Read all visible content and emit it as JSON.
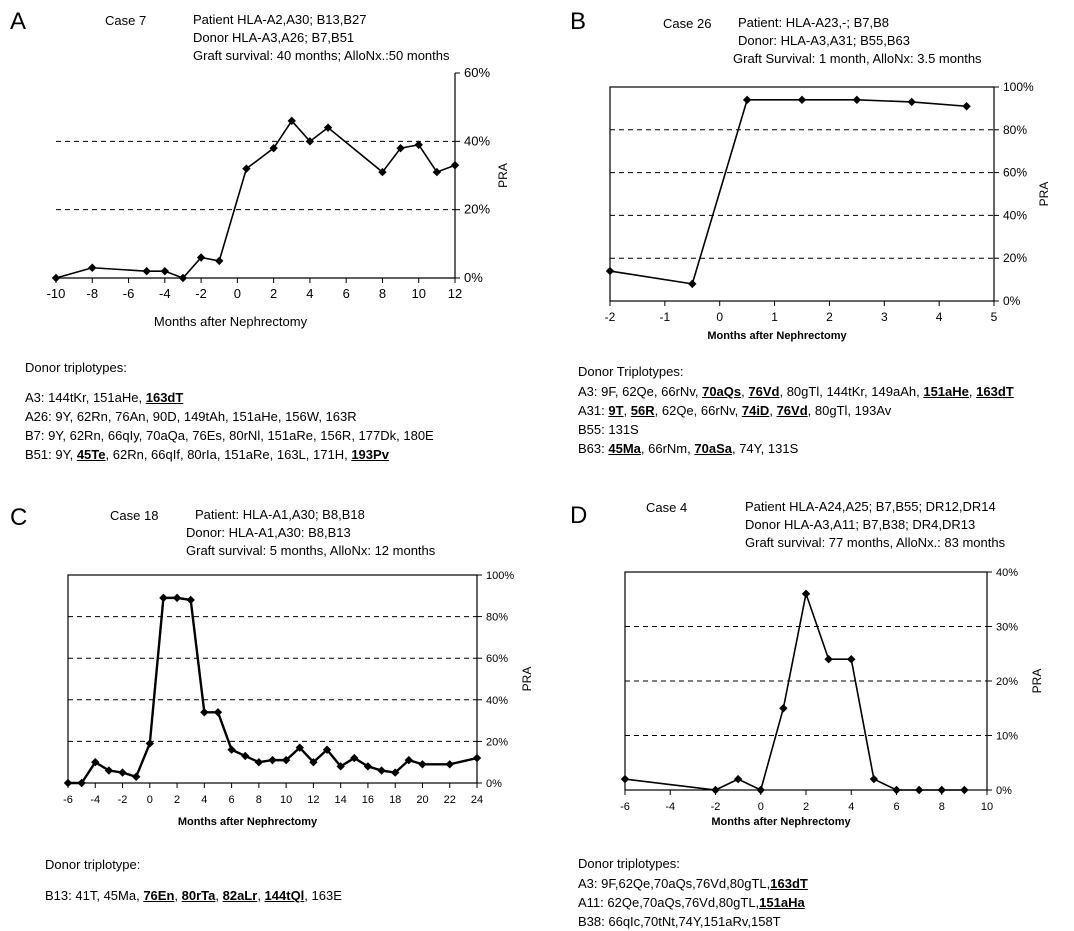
{
  "panels": [
    {
      "letter": "A",
      "case_label": "Case 7",
      "header": [
        "Patient HLA-A2,A30; B13,B27",
        "Donor HLA-A3,A26; B7,B51",
        "Graft survival: 40 months; AlloNx.:50 months"
      ],
      "triplotype_title": "Donor triplotypes:",
      "triplotype_rows": [
        {
          "label": "A3:",
          "tokens": [
            {
              "t": "144tKr",
              "u": false
            },
            {
              "t": "151aHe",
              "u": false
            },
            {
              "t": "163dT",
              "u": true
            }
          ]
        },
        {
          "label": "A26:",
          "tokens": [
            {
              "t": "9Y",
              "u": false
            },
            {
              "t": "62Rn",
              "u": false
            },
            {
              "t": "76An",
              "u": false
            },
            {
              "t": "90D",
              "u": false
            },
            {
              "t": "149tAh",
              "u": false
            },
            {
              "t": "151aHe",
              "u": false
            },
            {
              "t": "156W",
              "u": false
            },
            {
              "t": "163R",
              "u": false
            }
          ]
        },
        {
          "label": "B7:",
          "tokens": [
            {
              "t": "9Y",
              "u": false
            },
            {
              "t": "62Rn",
              "u": false
            },
            {
              "t": "66qIy",
              "u": false
            },
            {
              "t": "70aQa",
              "u": false
            },
            {
              "t": "76Es",
              "u": false
            },
            {
              "t": "80rNl",
              "u": false
            },
            {
              "t": "151aRe",
              "u": false
            },
            {
              "t": "156R",
              "u": false
            },
            {
              "t": "177Dk",
              "u": false
            },
            {
              "t": "180E",
              "u": false
            }
          ]
        },
        {
          "label": "B51:",
          "tokens": [
            {
              "t": "9Y",
              "u": false
            },
            {
              "t": "45Te",
              "u": true
            },
            {
              "t": "62Rn",
              "u": false
            },
            {
              "t": "66qIf",
              "u": false
            },
            {
              "t": "80rIa",
              "u": false
            },
            {
              "t": "151aRe",
              "u": false
            },
            {
              "t": "163L",
              "u": false
            },
            {
              "t": "171H",
              "u": false
            },
            {
              "t": "193Pv",
              "u": true
            }
          ]
        }
      ]
    },
    {
      "letter": "B",
      "case_label": "Case 26",
      "header": [
        "Patient: HLA-A23,-; B7,B8",
        "Donor: HLA-A3,A31; B55,B63",
        "Graft Survival: 1 month, AlloNx: 3.5 months"
      ],
      "triplotype_title": "Donor Triplotypes:",
      "triplotype_rows": [
        {
          "label": "A3:",
          "tokens": [
            {
              "t": "9F",
              "u": false
            },
            {
              "t": "62Qe",
              "u": false
            },
            {
              "t": "66rNv",
              "u": false
            },
            {
              "t": "70aQs",
              "u": true
            },
            {
              "t": "76Vd",
              "u": true
            },
            {
              "t": "80gTl",
              "u": false
            },
            {
              "t": "144tKr",
              "u": false
            },
            {
              "t": "149aAh",
              "u": false
            },
            {
              "t": "151aHe",
              "u": true
            },
            {
              "t": "163dT",
              "u": true
            }
          ]
        },
        {
          "label": "A31:",
          "tokens": [
            {
              "t": "9T",
              "u": true
            },
            {
              "t": "56R",
              "u": true
            },
            {
              "t": "62Qe",
              "u": false
            },
            {
              "t": "66rNv",
              "u": false
            },
            {
              "t": "74iD",
              "u": true
            },
            {
              "t": "76Vd",
              "u": true
            },
            {
              "t": "80gTl",
              "u": false
            },
            {
              "t": "193Av",
              "u": false
            }
          ]
        },
        {
          "label": "B55:",
          "tokens": [
            {
              "t": "131S",
              "u": false
            }
          ]
        },
        {
          "label": "B63:",
          "tokens": [
            {
              "t": "45Ma",
              "u": true
            },
            {
              "t": "66rNm",
              "u": false
            },
            {
              "t": "70aSa",
              "u": true
            },
            {
              "t": "74Y",
              "u": false
            },
            {
              "t": "131S",
              "u": false
            }
          ]
        }
      ]
    },
    {
      "letter": "C",
      "case_label": "Case 18",
      "header": [
        "Patient:  HLA-A1,A30; B8,B18",
        "Donor:  HLA-A1,A30: B8,B13",
        "Graft survival: 5 months, AlloNx: 12 months"
      ],
      "triplotype_title": "Donor triplotype:",
      "triplotype_rows": [
        {
          "label": "B13:",
          "tokens": [
            {
              "t": "41T",
              "u": false
            },
            {
              "t": "45Ma",
              "u": false
            },
            {
              "t": "76En",
              "u": true
            },
            {
              "t": "80rTa",
              "u": true
            },
            {
              "t": "82aLr",
              "u": true
            },
            {
              "t": "144tQl",
              "u": true
            },
            {
              "t": "163E",
              "u": false
            }
          ]
        }
      ]
    },
    {
      "letter": "D",
      "case_label": "Case 4",
      "header": [
        "Patient HLA-A24,A25; B7,B55; DR12,DR14",
        "Donor HLA-A3,A11; B7,B38; DR4,DR13",
        "Graft survival: 77 months, AlloNx.: 83 months"
      ],
      "triplotype_title": "Donor triplotypes:",
      "triplotype_rows": [
        {
          "label": "A3:",
          "tokens": [
            {
              "t": "9F,62Qe,70aQs,76Vd,80gTL,",
              "u": false
            },
            {
              "t": "163dT",
              "u": true
            }
          ]
        },
        {
          "label": "A11:",
          "tokens": [
            {
              "t": "62Qe,70aQs,76Vd,80gTL,",
              "u": false
            },
            {
              "t": "151aHa",
              "u": true
            }
          ]
        },
        {
          "label": "B38:",
          "tokens": [
            {
              "t": "66qIc,70tNt,74Y,151aRv,158T",
              "u": false
            }
          ]
        }
      ]
    }
  ],
  "chart_data": [
    {
      "type": "line",
      "panel": "A",
      "xlabel": "Months after Nephrectomy",
      "ylabel": "PRA",
      "xlim": [
        -10,
        12
      ],
      "ylim": [
        0,
        60
      ],
      "xticks": [
        -10,
        -8,
        -6,
        -4,
        -2,
        0,
        2,
        4,
        6,
        8,
        10,
        12
      ],
      "yticks": [
        0,
        20,
        40,
        60
      ],
      "ytick_labels": [
        "0%",
        "20%",
        "40%",
        "60%"
      ],
      "dashed_grid": [
        20,
        40
      ],
      "x": [
        -10,
        -8,
        -5,
        -4,
        -3,
        -2,
        -1,
        0.5,
        2,
        3,
        4,
        5,
        8,
        9,
        10,
        11,
        12
      ],
      "y": [
        0,
        3,
        2,
        2,
        0,
        6,
        5,
        32,
        38,
        46,
        40,
        44,
        31,
        38,
        39,
        31,
        33
      ]
    },
    {
      "type": "line",
      "panel": "B",
      "xlabel": "Months after Nephrectomy",
      "ylabel": "PRA",
      "xlim": [
        -2,
        5
      ],
      "ylim": [
        0,
        100
      ],
      "xticks": [
        -2,
        -1,
        0,
        1,
        2,
        3,
        4,
        5
      ],
      "yticks": [
        0,
        20,
        40,
        60,
        80,
        100
      ],
      "ytick_labels": [
        "0%",
        "20%",
        "40%",
        "60%",
        "80%",
        "100%"
      ],
      "dashed_grid": [
        20,
        40,
        60,
        80
      ],
      "x": [
        -2,
        -0.5,
        0.5,
        1.5,
        2.5,
        3.5,
        4.5
      ],
      "y": [
        14,
        8,
        94,
        94,
        94,
        93,
        91
      ]
    },
    {
      "type": "line",
      "panel": "C",
      "xlabel": "Months after Nephrectomy",
      "ylabel": "PRA",
      "xlim": [
        -6,
        24
      ],
      "ylim": [
        0,
        100
      ],
      "xticks": [
        -6,
        -4,
        -2,
        0,
        2,
        4,
        6,
        8,
        10,
        12,
        14,
        16,
        18,
        20,
        22,
        24
      ],
      "yticks": [
        0,
        20,
        40,
        60,
        80,
        100
      ],
      "ytick_labels": [
        "0%",
        "20%",
        "40%",
        "60%",
        "80%",
        "100%"
      ],
      "dashed_grid": [
        20,
        40,
        60,
        80
      ],
      "x": [
        -6,
        -5,
        -4,
        -3,
        -2,
        -1,
        0,
        1,
        2,
        3,
        4,
        5,
        6,
        7,
        8,
        9,
        10,
        11,
        12,
        13,
        14,
        15,
        16,
        17,
        18,
        19,
        20,
        22,
        24
      ],
      "y": [
        0,
        0,
        10,
        6,
        5,
        3,
        19,
        89,
        89,
        88,
        34,
        34,
        16,
        13,
        10,
        11,
        11,
        17,
        10,
        16,
        8,
        12,
        8,
        6,
        5,
        11,
        9,
        9,
        12
      ]
    },
    {
      "type": "line",
      "panel": "D",
      "xlabel": "Months after Nephrectomy",
      "ylabel": "PRA",
      "xlim": [
        -6,
        10
      ],
      "ylim": [
        0,
        40
      ],
      "xticks": [
        -6,
        -4,
        -2,
        0,
        2,
        4,
        6,
        8,
        10
      ],
      "yticks": [
        0,
        10,
        20,
        30,
        40
      ],
      "ytick_labels": [
        "0%",
        "10%",
        "20%",
        "30%",
        "40%"
      ],
      "dashed_grid": [
        10,
        20,
        30
      ],
      "x": [
        -6,
        -2,
        -1,
        0,
        1,
        2,
        3,
        4,
        5,
        6,
        7,
        8,
        9
      ],
      "y": [
        2,
        0,
        2,
        0,
        15,
        36,
        24,
        24,
        2,
        0,
        0,
        0,
        0
      ]
    }
  ]
}
